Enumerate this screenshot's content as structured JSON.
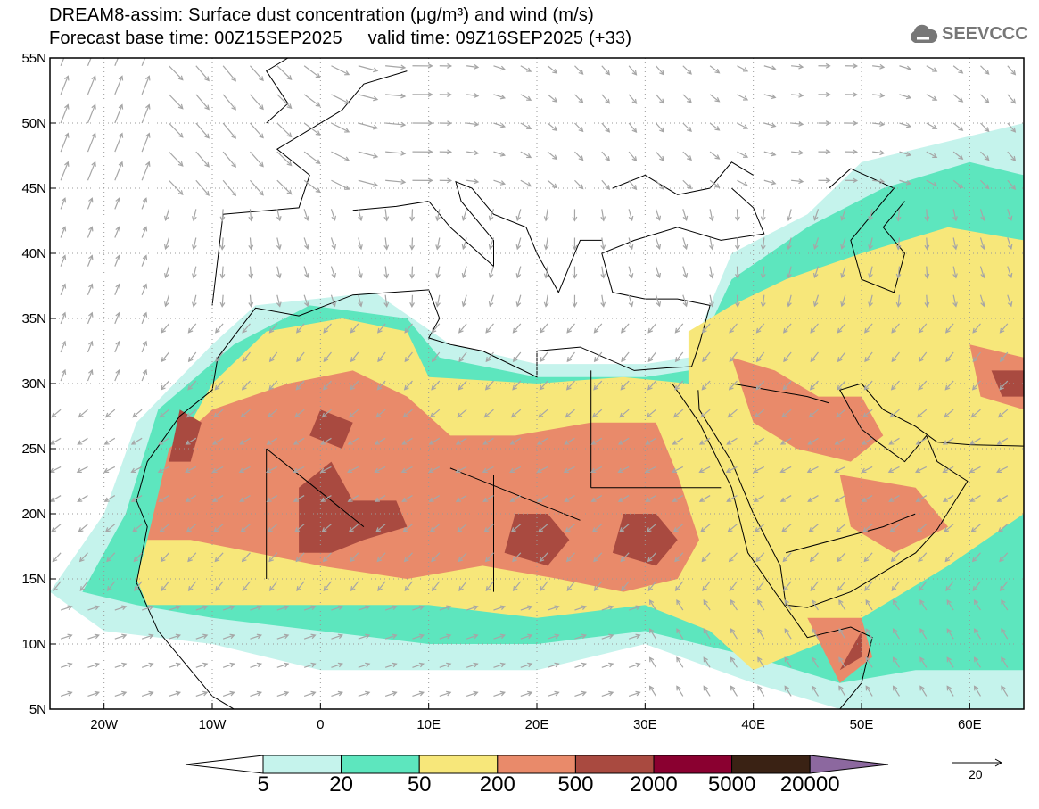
{
  "title": {
    "line1": "DREAM8-assim: Surface dust concentration (μg/m³) and wind (m/s)",
    "line2": "Forecast base time: 00Z15SEP2025     valid time: 09Z16SEP2025 (+33)"
  },
  "logo": {
    "text": "SEEVCCC",
    "icon": "cloud-icon"
  },
  "axes": {
    "lon_labels": [
      "20W",
      "10W",
      "0",
      "10E",
      "20E",
      "30E",
      "40E",
      "50E",
      "60E"
    ],
    "lon_values": [
      -20,
      -10,
      0,
      10,
      20,
      30,
      40,
      50,
      60
    ],
    "lat_labels": [
      "55N",
      "50N",
      "45N",
      "40N",
      "35N",
      "30N",
      "25N",
      "20N",
      "15N",
      "10N",
      "5N"
    ],
    "lat_values": [
      55,
      50,
      45,
      40,
      35,
      30,
      25,
      20,
      15,
      10,
      5
    ],
    "lon_range": [
      -25,
      65
    ],
    "lat_range": [
      5,
      55
    ]
  },
  "colorbar": {
    "labels": [
      "5",
      "20",
      "50",
      "200",
      "500",
      "2000",
      "5000",
      "20000"
    ],
    "colors": [
      "#ffffff",
      "#c5f3ec",
      "#5de6be",
      "#f7e77a",
      "#e98a6a",
      "#a94a40",
      "#8a0030",
      "#3a2214",
      "#8c689f"
    ]
  },
  "wind_reference": {
    "label": "20"
  }
}
